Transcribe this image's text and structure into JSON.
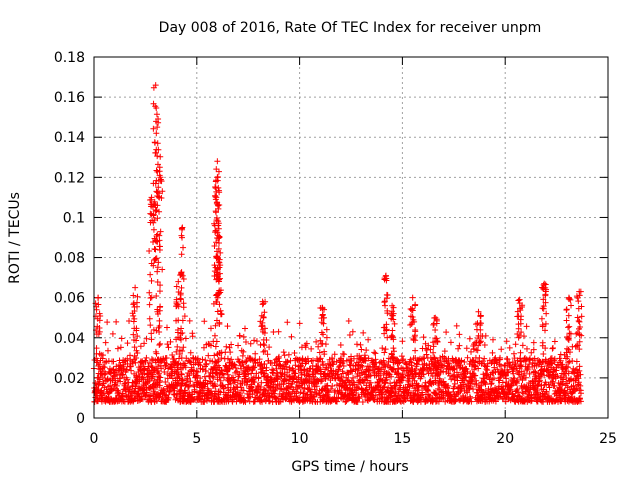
{
  "chart_data": {
    "type": "scatter",
    "title": "Day 008 of 2016, Rate Of TEC Index for receiver unpm",
    "xlabel": "GPS time / hours",
    "ylabel": "ROTI / TECUs",
    "xlim": [
      0,
      25
    ],
    "ylim": [
      0,
      0.18
    ],
    "xticks": [
      "0",
      "5",
      "10",
      "15",
      "20",
      "25"
    ],
    "xtick_values": [
      0,
      5,
      10,
      15,
      20,
      25
    ],
    "yticks": [
      "0",
      "0.02",
      "0.04",
      "0.06",
      "0.08",
      "0.1",
      "0.12",
      "0.14",
      "0.16",
      "0.18"
    ],
    "ytick_values": [
      0,
      0.02,
      0.04,
      0.06,
      0.08,
      0.1,
      0.12,
      0.14,
      0.16,
      0.18
    ],
    "grid": true,
    "marker": "+",
    "color": "#ff0000",
    "series": [
      {
        "name": "ROTI",
        "x_range": [
          0,
          23.7
        ],
        "typical_range": [
          0.008,
          0.03
        ],
        "peaks": [
          {
            "x": 0.2,
            "y": 0.06
          },
          {
            "x": 2.0,
            "y": 0.065
          },
          {
            "x": 3.0,
            "y": 0.166
          },
          {
            "x": 3.1,
            "y": 0.137
          },
          {
            "x": 3.2,
            "y": 0.125
          },
          {
            "x": 2.8,
            "y": 0.11
          },
          {
            "x": 4.3,
            "y": 0.095
          },
          {
            "x": 4.1,
            "y": 0.068
          },
          {
            "x": 6.0,
            "y": 0.128
          },
          {
            "x": 6.0,
            "y": 0.12
          },
          {
            "x": 5.95,
            "y": 0.11
          },
          {
            "x": 6.1,
            "y": 0.09
          },
          {
            "x": 8.2,
            "y": 0.058
          },
          {
            "x": 11.1,
            "y": 0.055
          },
          {
            "x": 14.2,
            "y": 0.071
          },
          {
            "x": 14.5,
            "y": 0.056
          },
          {
            "x": 15.5,
            "y": 0.06
          },
          {
            "x": 16.6,
            "y": 0.05
          },
          {
            "x": 18.7,
            "y": 0.053
          },
          {
            "x": 20.7,
            "y": 0.059
          },
          {
            "x": 21.9,
            "y": 0.067
          },
          {
            "x": 23.6,
            "y": 0.063
          },
          {
            "x": 23.1,
            "y": 0.06
          }
        ]
      }
    ]
  }
}
